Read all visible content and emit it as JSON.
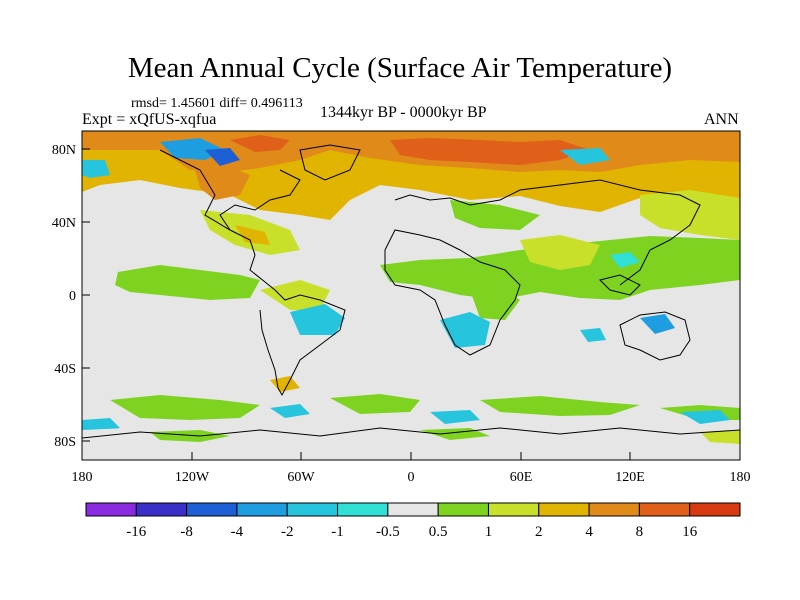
{
  "figure": {
    "title": "Mean Annual Cycle (Surface Air Temperature)",
    "stats": "rmsd= 1.45601 diff= 0.496113",
    "experiment": "Expt = xQfUS-xqfua",
    "period": "1344kyr BP - 0000kyr BP",
    "season": "ANN"
  },
  "axes": {
    "lat_labels": [
      "80N",
      "40N",
      "0",
      "40S",
      "80S"
    ],
    "lon_labels": [
      "180",
      "120W",
      "60W",
      "0",
      "60E",
      "120E",
      "180"
    ]
  },
  "colorbar": {
    "labels": [
      "-16",
      "-8",
      "-4",
      "-2",
      "-1",
      "-0.5",
      "0.5",
      "1",
      "2",
      "4",
      "8",
      "16"
    ],
    "colors": [
      "#8a2be2",
      "#3a2fc8",
      "#1f5fd6",
      "#1e9ee0",
      "#27c4de",
      "#30e0d4",
      "#e6e6e6",
      "#7ed321",
      "#c8e02a",
      "#e0b400",
      "#e08a1a",
      "#e0601a",
      "#d63a10"
    ]
  }
}
